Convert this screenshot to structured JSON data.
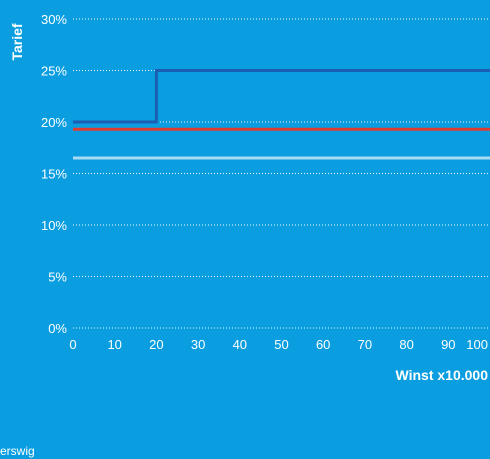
{
  "chart_data": {
    "type": "line",
    "xlabel": "Winst x10.000",
    "ylabel": "Tarief",
    "xlim": [
      0,
      100
    ],
    "ylim": [
      0,
      30
    ],
    "x_ticks": [
      0,
      10,
      20,
      30,
      40,
      50,
      60,
      70,
      80,
      90,
      100
    ],
    "y_ticks": [
      0,
      5,
      10,
      15,
      20,
      25,
      30
    ],
    "y_tick_labels": [
      "0%",
      "5%",
      "10%",
      "15%",
      "20%",
      "25%",
      "30%"
    ],
    "grid": "horizontal-dotted",
    "series": [
      {
        "color": "#1a5fb4",
        "x": [
          0,
          20,
          20,
          100
        ],
        "y": [
          20,
          20,
          25,
          25
        ]
      },
      {
        "color": "#e03c31",
        "x": [
          0,
          100
        ],
        "y": [
          19.3,
          19.3
        ]
      },
      {
        "color": "#a8dcf4",
        "x": [
          0,
          100
        ],
        "y": [
          16.5,
          16.5
        ]
      }
    ]
  },
  "footer_text": "erswig"
}
